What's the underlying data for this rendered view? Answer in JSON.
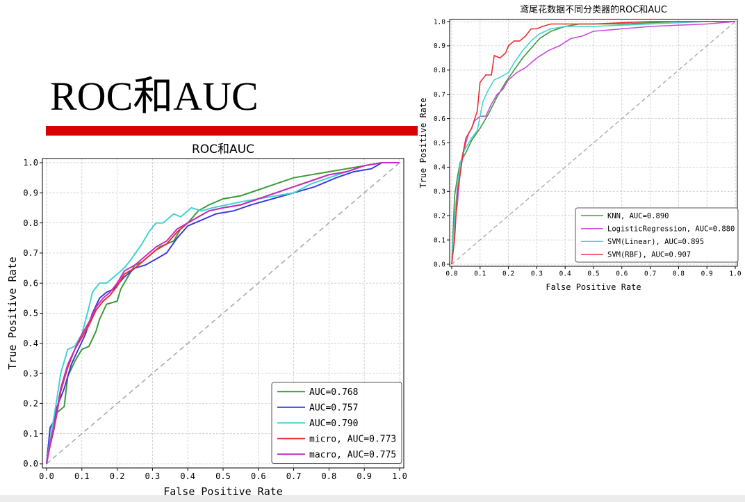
{
  "slide": {
    "title": "ROC和AUC"
  },
  "chart_data": [
    {
      "type": "line",
      "title": "ROC和AUC",
      "xlabel": "False Positive Rate",
      "ylabel": "True Positive Rate",
      "xlim": [
        0,
        1
      ],
      "ylim": [
        0,
        1
      ],
      "xticks": [
        "0.0",
        "0.1",
        "0.2",
        "0.3",
        "0.4",
        "0.5",
        "0.6",
        "0.7",
        "0.8",
        "0.9",
        "1.0"
      ],
      "yticks": [
        "0.0",
        "0.1",
        "0.2",
        "0.3",
        "0.4",
        "0.5",
        "0.6",
        "0.7",
        "0.8",
        "0.9",
        "1.0"
      ],
      "grid": true,
      "legend_position": "lower-right",
      "diagonal": {
        "color": "#aaaaaa",
        "style": "dashed"
      },
      "series": [
        {
          "name": "AUC=0.768",
          "color": "#3a9a3a",
          "x": [
            0,
            0.01,
            0.02,
            0.03,
            0.05,
            0.06,
            0.08,
            0.1,
            0.12,
            0.14,
            0.15,
            0.17,
            0.2,
            0.21,
            0.23,
            0.25,
            0.27,
            0.3,
            0.32,
            0.34,
            0.36,
            0.38,
            0.4,
            0.43,
            0.46,
            0.5,
            0.55,
            0.6,
            0.65,
            0.7,
            0.75,
            0.8,
            0.85,
            0.9,
            0.95,
            1.0
          ],
          "y": [
            0,
            0.08,
            0.13,
            0.17,
            0.19,
            0.29,
            0.34,
            0.38,
            0.39,
            0.44,
            0.48,
            0.53,
            0.54,
            0.58,
            0.62,
            0.66,
            0.67,
            0.7,
            0.72,
            0.73,
            0.74,
            0.78,
            0.8,
            0.84,
            0.86,
            0.88,
            0.89,
            0.91,
            0.93,
            0.95,
            0.96,
            0.97,
            0.98,
            0.99,
            1.0,
            1.0
          ]
        },
        {
          "name": "AUC=0.757",
          "color": "#3b3be0",
          "x": [
            0,
            0.01,
            0.02,
            0.03,
            0.05,
            0.07,
            0.09,
            0.11,
            0.13,
            0.15,
            0.17,
            0.19,
            0.22,
            0.25,
            0.28,
            0.31,
            0.34,
            0.37,
            0.4,
            0.44,
            0.48,
            0.53,
            0.58,
            0.64,
            0.7,
            0.76,
            0.82,
            0.87,
            0.92,
            0.95,
            1.0
          ],
          "y": [
            0,
            0.12,
            0.14,
            0.19,
            0.25,
            0.33,
            0.38,
            0.43,
            0.5,
            0.55,
            0.57,
            0.58,
            0.62,
            0.65,
            0.66,
            0.68,
            0.7,
            0.75,
            0.79,
            0.81,
            0.83,
            0.84,
            0.86,
            0.88,
            0.9,
            0.92,
            0.95,
            0.97,
            0.98,
            1.0,
            1.0
          ]
        },
        {
          "name": "AUC=0.790",
          "color": "#3fd4d0",
          "x": [
            0,
            0.01,
            0.02,
            0.03,
            0.04,
            0.06,
            0.08,
            0.1,
            0.12,
            0.13,
            0.15,
            0.17,
            0.2,
            0.22,
            0.24,
            0.27,
            0.29,
            0.31,
            0.33,
            0.36,
            0.38,
            0.41,
            0.44,
            0.47,
            0.51,
            0.55,
            0.6,
            0.65,
            0.7,
            0.75,
            0.8,
            0.85,
            0.9,
            0.95,
            1.0
          ],
          "y": [
            0,
            0.08,
            0.15,
            0.22,
            0.3,
            0.38,
            0.39,
            0.43,
            0.52,
            0.57,
            0.6,
            0.6,
            0.63,
            0.65,
            0.68,
            0.73,
            0.77,
            0.8,
            0.8,
            0.83,
            0.82,
            0.85,
            0.84,
            0.85,
            0.86,
            0.87,
            0.88,
            0.89,
            0.9,
            0.93,
            0.95,
            0.97,
            0.99,
            1.0,
            1.0
          ]
        },
        {
          "name": "micro, AUC=0.773",
          "color": "#e83030",
          "x": [
            0,
            0.01,
            0.02,
            0.03,
            0.04,
            0.06,
            0.08,
            0.1,
            0.12,
            0.14,
            0.16,
            0.18,
            0.2,
            0.22,
            0.25,
            0.28,
            0.31,
            0.34,
            0.37,
            0.4,
            0.43,
            0.46,
            0.5,
            0.55,
            0.6,
            0.65,
            0.7,
            0.75,
            0.8,
            0.85,
            0.9,
            0.95,
            1.0
          ],
          "y": [
            0,
            0.06,
            0.11,
            0.17,
            0.24,
            0.32,
            0.38,
            0.42,
            0.46,
            0.51,
            0.54,
            0.56,
            0.59,
            0.63,
            0.65,
            0.68,
            0.71,
            0.73,
            0.77,
            0.8,
            0.82,
            0.84,
            0.85,
            0.86,
            0.88,
            0.9,
            0.92,
            0.94,
            0.96,
            0.97,
            0.99,
            1.0,
            1.0
          ]
        },
        {
          "name": "macro, AUC=0.775",
          "color": "#c42ec4",
          "x": [
            0,
            0.01,
            0.02,
            0.03,
            0.04,
            0.06,
            0.08,
            0.1,
            0.12,
            0.14,
            0.16,
            0.18,
            0.2,
            0.22,
            0.25,
            0.28,
            0.31,
            0.34,
            0.37,
            0.4,
            0.43,
            0.46,
            0.5,
            0.55,
            0.6,
            0.65,
            0.7,
            0.75,
            0.8,
            0.85,
            0.9,
            0.95,
            1.0
          ],
          "y": [
            0,
            0.07,
            0.12,
            0.18,
            0.25,
            0.33,
            0.38,
            0.43,
            0.47,
            0.52,
            0.55,
            0.57,
            0.6,
            0.64,
            0.66,
            0.69,
            0.72,
            0.74,
            0.78,
            0.8,
            0.82,
            0.84,
            0.85,
            0.86,
            0.88,
            0.9,
            0.92,
            0.94,
            0.96,
            0.97,
            0.99,
            1.0,
            1.0
          ]
        }
      ]
    },
    {
      "type": "line",
      "title": "鸢尾花数据不同分类器的ROC和AUC",
      "xlabel": "False Positive Rate",
      "ylabel": "True Positive Rate",
      "xlim": [
        0,
        1
      ],
      "ylim": [
        0,
        1
      ],
      "xticks": [
        "0.0",
        "0.1",
        "0.2",
        "0.3",
        "0.4",
        "0.5",
        "0.6",
        "0.7",
        "0.8",
        "0.9",
        "1.0"
      ],
      "yticks": [
        "0.0",
        "0.1",
        "0.2",
        "0.3",
        "0.4",
        "0.5",
        "0.6",
        "0.7",
        "0.8",
        "0.9",
        "1.0"
      ],
      "grid": true,
      "legend_position": "lower-right",
      "diagonal": {
        "color": "#aaaaaa",
        "style": "dashed"
      },
      "series": [
        {
          "name": "KNN, AUC=0.890",
          "color": "#3a9a3a",
          "x": [
            0,
            0.01,
            0.02,
            0.03,
            0.05,
            0.07,
            0.1,
            0.13,
            0.16,
            0.19,
            0.22,
            0.25,
            0.28,
            0.31,
            0.35,
            0.4,
            0.45,
            0.5,
            0.6,
            0.7,
            0.8,
            0.9,
            1.0
          ],
          "y": [
            0,
            0.28,
            0.36,
            0.42,
            0.46,
            0.51,
            0.56,
            0.62,
            0.69,
            0.75,
            0.8,
            0.85,
            0.89,
            0.93,
            0.96,
            0.98,
            0.99,
            0.99,
            0.99,
            0.995,
            1.0,
            1.0,
            1.0
          ]
        },
        {
          "name": "LogisticRegression, AUC=0.880",
          "color": "#c84bd9",
          "x": [
            0,
            0.01,
            0.02,
            0.03,
            0.04,
            0.05,
            0.06,
            0.07,
            0.08,
            0.1,
            0.12,
            0.14,
            0.16,
            0.18,
            0.2,
            0.23,
            0.26,
            0.3,
            0.34,
            0.38,
            0.42,
            0.46,
            0.5,
            0.6,
            0.7,
            0.8,
            0.9,
            0.95,
            1.0
          ],
          "y": [
            0,
            0.16,
            0.25,
            0.38,
            0.45,
            0.5,
            0.54,
            0.56,
            0.59,
            0.61,
            0.61,
            0.66,
            0.7,
            0.72,
            0.76,
            0.79,
            0.81,
            0.85,
            0.88,
            0.9,
            0.93,
            0.94,
            0.96,
            0.97,
            0.98,
            0.985,
            0.99,
            0.995,
            1.0
          ]
        },
        {
          "name": "SVM(Linear), AUC=0.895",
          "color": "#3fd4d0",
          "x": [
            0,
            0.01,
            0.02,
            0.03,
            0.04,
            0.05,
            0.07,
            0.09,
            0.11,
            0.13,
            0.15,
            0.17,
            0.2,
            0.22,
            0.25,
            0.28,
            0.31,
            0.35,
            0.4,
            0.45,
            0.5,
            0.6,
            0.7,
            0.8,
            0.9,
            1.0
          ],
          "y": [
            0,
            0.19,
            0.32,
            0.41,
            0.46,
            0.48,
            0.52,
            0.55,
            0.67,
            0.72,
            0.76,
            0.77,
            0.79,
            0.83,
            0.88,
            0.92,
            0.95,
            0.97,
            0.98,
            0.98,
            0.98,
            0.985,
            0.99,
            0.995,
            1.0,
            1.0
          ]
        },
        {
          "name": "SVM(RBF), AUC=0.907",
          "color": "#e83030",
          "x": [
            0,
            0.005,
            0.01,
            0.02,
            0.03,
            0.04,
            0.05,
            0.07,
            0.09,
            0.1,
            0.12,
            0.14,
            0.15,
            0.17,
            0.19,
            0.2,
            0.22,
            0.24,
            0.26,
            0.28,
            0.3,
            0.32,
            0.35,
            0.4,
            0.5,
            0.6,
            0.7,
            0.8,
            0.9,
            1.0
          ],
          "y": [
            0,
            0.05,
            0.1,
            0.3,
            0.37,
            0.46,
            0.52,
            0.56,
            0.63,
            0.75,
            0.78,
            0.78,
            0.86,
            0.85,
            0.87,
            0.9,
            0.92,
            0.92,
            0.94,
            0.97,
            0.97,
            0.98,
            0.99,
            0.99,
            0.99,
            0.995,
            1.0,
            1.0,
            1.0,
            1.0
          ]
        }
      ]
    }
  ]
}
